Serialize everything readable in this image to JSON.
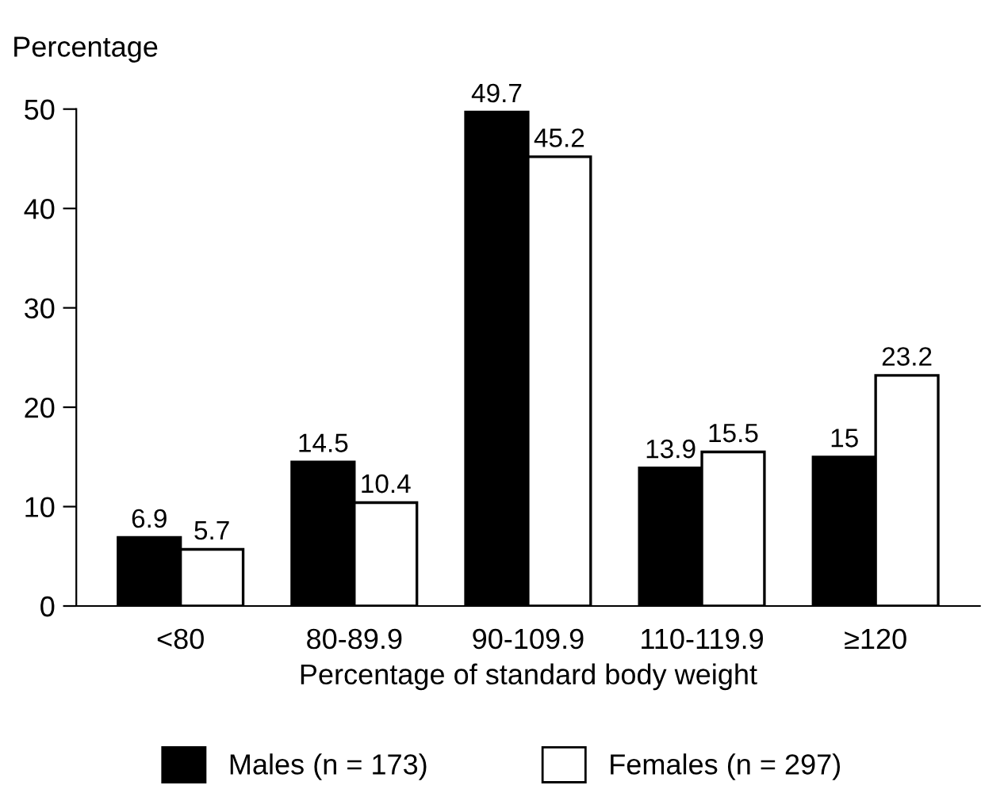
{
  "chart_data": {
    "type": "bar",
    "ylabel": "Percentage",
    "xlabel": "Percentage of standard body weight",
    "categories": [
      "<80",
      "80-89.9",
      "90-109.9",
      "110-119.9",
      "≥120"
    ],
    "series": [
      {
        "name": "Males (n = 173)",
        "color": "#000000",
        "values": [
          6.9,
          14.5,
          49.7,
          13.9,
          15
        ]
      },
      {
        "name": "Females (n = 297)",
        "color": "#ffffff",
        "values": [
          5.7,
          10.4,
          45.2,
          15.5,
          23.2
        ]
      }
    ],
    "ylim": [
      0,
      50
    ],
    "yticks": [
      0,
      10,
      20,
      30,
      40,
      50
    ],
    "data_labels": true,
    "legend": "bottom",
    "grid": false
  }
}
